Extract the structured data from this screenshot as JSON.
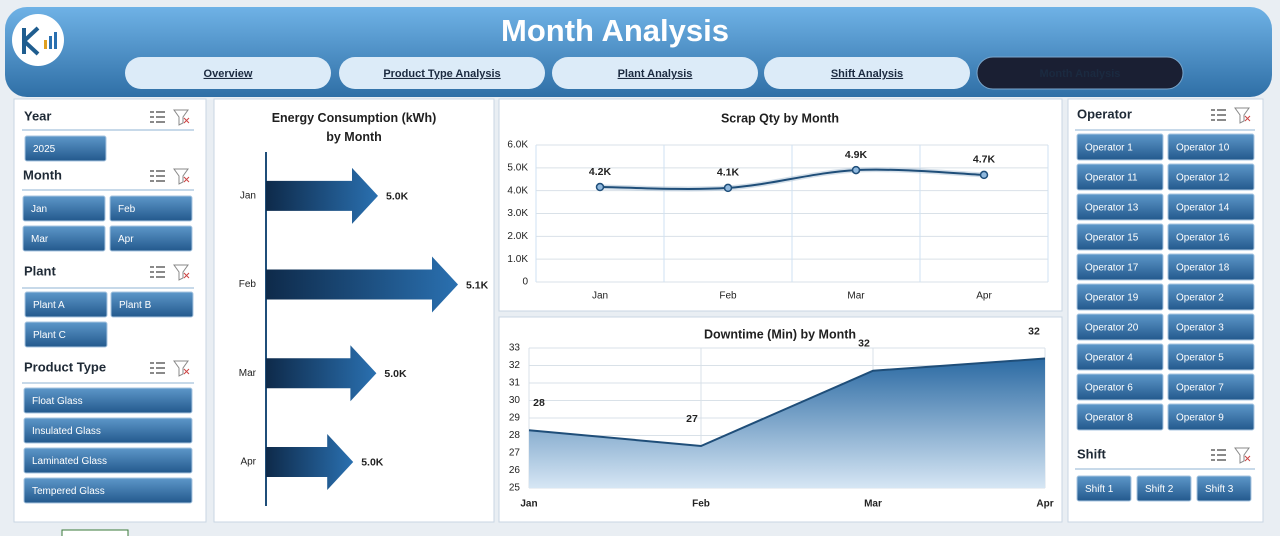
{
  "header": {
    "title": "Month Analysis"
  },
  "tabs": [
    "Overview",
    "Product Type Analysis",
    "Plant Analysis",
    "Shift Analysis",
    "Month Analysis"
  ],
  "slicers": [
    {
      "title": "Year",
      "items": [
        "2025"
      ]
    },
    {
      "title": "Month",
      "items": [
        "Jan",
        "Feb",
        "Mar",
        "Apr"
      ]
    },
    {
      "title": "Plant",
      "items": [
        "Plant A",
        "Plant B",
        "Plant C"
      ]
    },
    {
      "title": "Product Type",
      "items": [
        "Float Glass",
        "Insulated Glass",
        "Laminated Glass",
        "Tempered Glass"
      ]
    },
    {
      "title": "Operator",
      "items": [
        "Operator 1",
        "Operator 10",
        "Operator 11",
        "Operator 12",
        "Operator 13",
        "Operator 14",
        "Operator 15",
        "Operator 16",
        "Operator 17",
        "Operator 18",
        "Operator 19",
        "Operator 2",
        "Operator 20",
        "Operator 3",
        "Operator 4",
        "Operator 5",
        "Operator 6",
        "Operator 7",
        "Operator 8",
        "Operator 9"
      ]
    },
    {
      "title": "Shift",
      "items": [
        "Shift 1",
        "Shift 2",
        "Shift 3"
      ]
    }
  ],
  "chart_data": [
    {
      "type": "bar",
      "orientation": "horizontal",
      "title": "Energy Consumption (kWh) by Month",
      "categories": [
        "Jan",
        "Feb",
        "Mar",
        "Apr"
      ],
      "values": [
        5000,
        5100,
        4998,
        4969
      ],
      "value_labels": [
        "5.0K",
        "5.1K",
        "5.0K",
        "5.0K"
      ],
      "xlim": [
        4860,
        5140
      ]
    },
    {
      "type": "line",
      "title": "Scrap Qty by Month",
      "categories": [
        "Jan",
        "Feb",
        "Mar",
        "Apr"
      ],
      "values": [
        4160,
        4120,
        4900,
        4690
      ],
      "value_labels": [
        "4.2K",
        "4.1K",
        "4.9K",
        "4.7K"
      ],
      "color": "#1f4e79",
      "ylim": [
        0,
        6000
      ],
      "yticks": [
        0,
        {
          "value": 1000,
          "label": "1.0K"
        },
        {
          "value": 2000,
          "label": "2.0K"
        },
        {
          "value": 3000,
          "label": "3.0K"
        },
        {
          "value": 4000,
          "label": "4.0K"
        },
        {
          "value": 5000,
          "label": "5.0K"
        },
        {
          "value": 6000,
          "label": "6.0K"
        }
      ],
      "grid": true
    },
    {
      "type": "area",
      "title": "Downtime (Min) by Month",
      "categories": [
        "Jan",
        "Feb",
        "Mar",
        "Apr"
      ],
      "values": [
        28.3,
        27.4,
        31.7,
        32.4
      ],
      "value_labels": [
        "28",
        "27",
        "32",
        "32"
      ],
      "color": "#1f4e79",
      "ylim": [
        25,
        33
      ],
      "yticks": [
        25,
        26,
        27,
        28,
        29,
        30,
        31,
        32,
        33
      ],
      "grid": true
    }
  ]
}
